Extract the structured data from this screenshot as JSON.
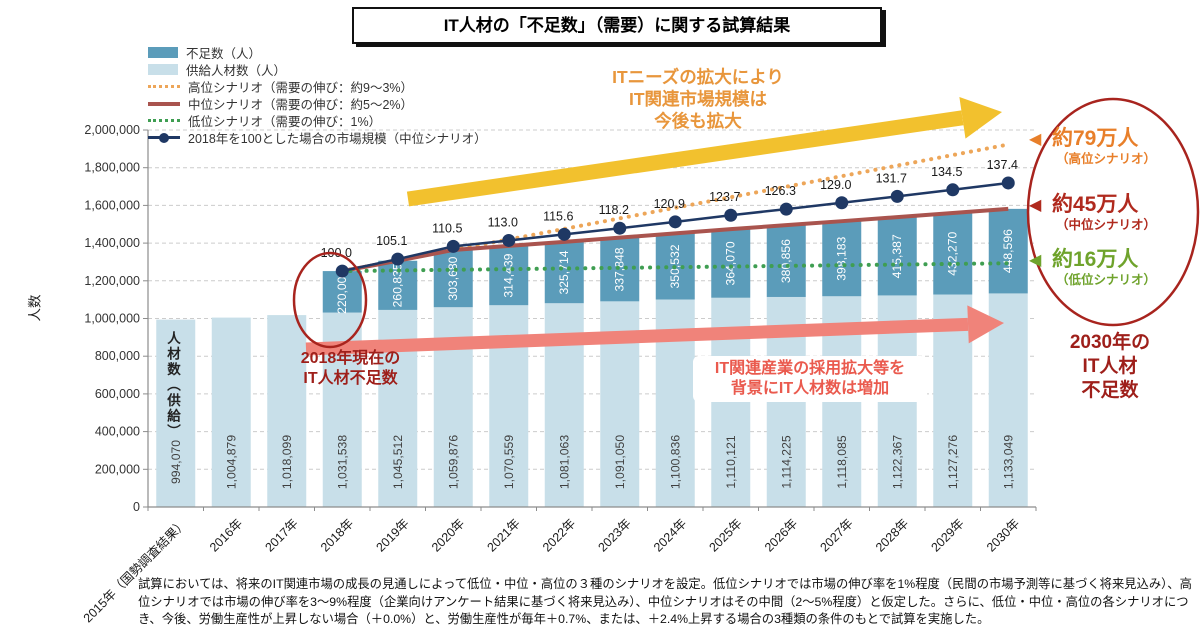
{
  "title": "IT人材の「不足数」（需要）に関する試算結果",
  "legend": [
    {
      "label": "不足数（人）",
      "type": "bar",
      "color": "#5b9cba"
    },
    {
      "label": "供給人材数（人）",
      "type": "bar",
      "color": "#c8dfe9"
    },
    {
      "label": "高位シナリオ（需要の伸び：約9～3%）",
      "type": "dotted",
      "color": "#eda659"
    },
    {
      "label": "中位シナリオ（需要の伸び：約5～2%）",
      "type": "solid",
      "color": "#a9544e"
    },
    {
      "label": "低位シナリオ（需要の伸び：1%）",
      "type": "dotted",
      "color": "#3f9e52"
    },
    {
      "label": "2018年を100とした場合の市場規模（中位シナリオ）",
      "type": "line-marker",
      "color": "#1f3864"
    }
  ],
  "axes": {
    "y_title": "人数",
    "y_min": 0,
    "y_max": 2000000,
    "y_step": 200000
  },
  "chart_data": {
    "type": "bar-line-combo",
    "categories": [
      "2015年（国勢調査結果）",
      "2016年",
      "2017年",
      "2018年",
      "2019年",
      "2020年",
      "2021年",
      "2022年",
      "2023年",
      "2024年",
      "2025年",
      "2026年",
      "2027年",
      "2028年",
      "2029年",
      "2030年"
    ],
    "series": [
      {
        "name": "供給人材数（人）",
        "color": "#c8dfe9",
        "values": [
          994070,
          1004879,
          1018099,
          1031538,
          1045512,
          1059876,
          1070559,
          1081063,
          1091050,
          1100836,
          1110121,
          1114225,
          1118085,
          1122367,
          1127276,
          1133049
        ]
      },
      {
        "name": "不足数（人）",
        "color": "#5b9cba",
        "values": [
          null,
          null,
          null,
          220000,
          260835,
          303680,
          314439,
          325714,
          337848,
          350532,
          364070,
          380856,
          398183,
          415387,
          432270,
          448596
        ]
      },
      {
        "name": "2018年を100とした場合の市場規模（中位シナリオ）",
        "color": "#1f3864",
        "values": [
          null,
          null,
          null,
          100.0,
          105.1,
          110.5,
          113.0,
          115.6,
          118.2,
          120.9,
          123.7,
          126.3,
          129.0,
          131.7,
          134.5,
          137.4
        ]
      }
    ],
    "scenario_2030_shortage": {
      "high": 790000,
      "mid": 450000,
      "low": 160000
    },
    "scenario_colors": {
      "high": "#eda659",
      "mid": "#a9544e",
      "low": "#3f9e52"
    },
    "ylim": [
      0,
      2000000
    ],
    "grid": true,
    "legend_position": "top-left"
  },
  "annotations": {
    "market_growth": "ITニーズの拡大により\nIT関連市場規模は\n今後も拡大",
    "shortage_2018": "2018年現在の\nIT人材不足数",
    "talent_increase": "IT関連産業の採用拡大等を\n背景にIT人材数は増加",
    "first_bar_label": "人材数（供給）",
    "caption_2030": "2030年の\nIT人材\n不足数",
    "shortage_2030_high": "約79万人",
    "shortage_2030_high_sub": "（高位シナリオ）",
    "shortage_2030_mid": "約45万人",
    "shortage_2030_mid_sub": "（中位シナリオ）",
    "shortage_2030_low": "約16万人",
    "shortage_2030_low_sub": "（低位シナリオ）",
    "triangle_glyph": "◀"
  },
  "colors": {
    "yellow_arrow": "#f2c12e",
    "pink_arrow": "#f0837a",
    "ellipse_red": "#a8241e",
    "axis_gray": "#8c8c8c",
    "grid_gray": "#cccccc",
    "bar_value_dark_text": "#3f3f3f",
    "bar_value_white_text": "#ffffff"
  },
  "footer": "試算においては、将来のIT関連市場の成長の見通しによって低位・中位・高位の３種のシナリオを設定。低位シナリオでは市場の伸び率を1%程度（民間の市場予測等に基づく将来見込み）、高位シナリオでは市場の伸び率を3～9%程度（企業向けアンケート結果に基づく将来見込み）、中位シナリオはその中間（2～5%程度）と仮定した。さらに、低位・中位・高位の各シナリオにつき、今後、労働生産性が上昇しない場合（＋0.0%）と、労働生産性が毎年＋0.7%、または、＋2.4%上昇する場合の3種類の条件のもとで試算を実施した。"
}
